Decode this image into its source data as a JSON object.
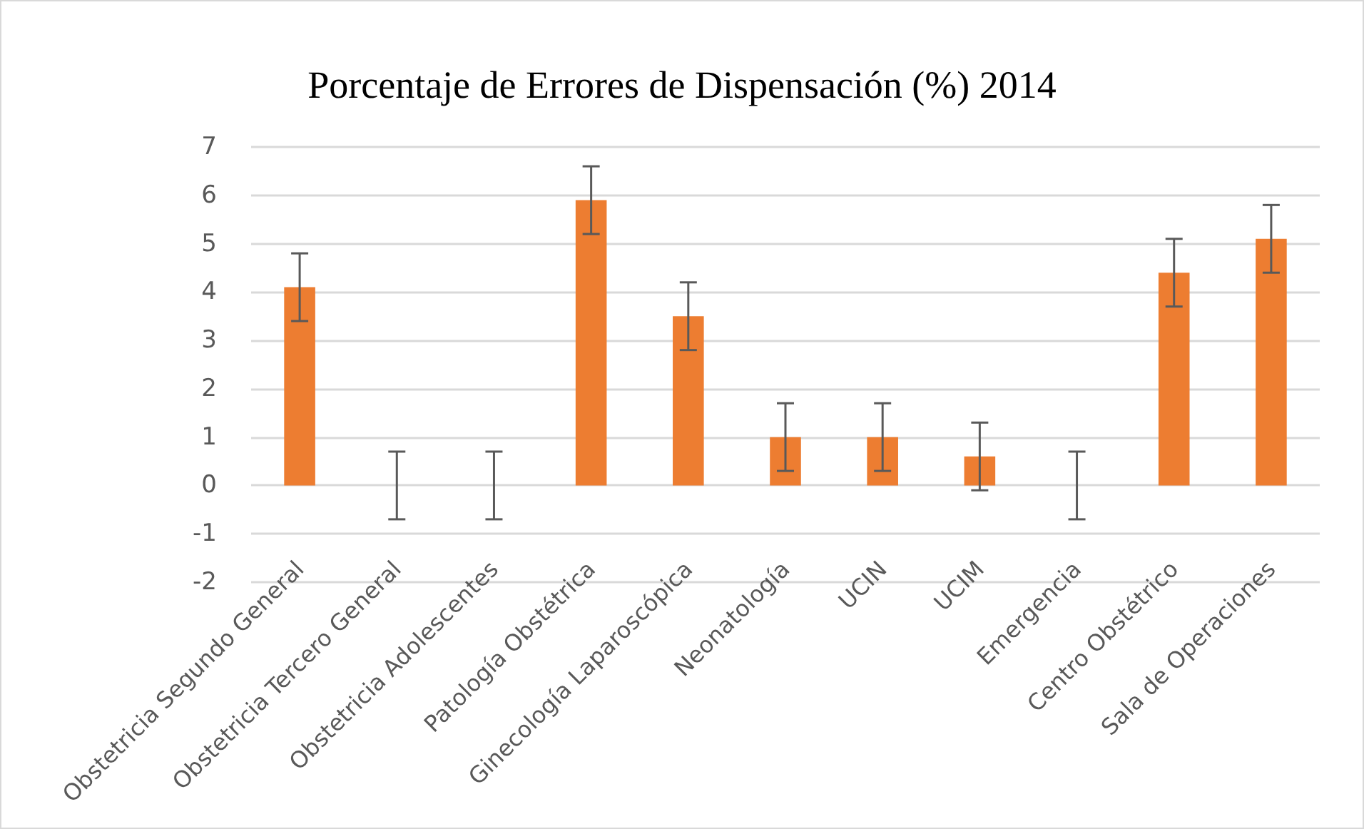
{
  "chart_data": {
    "type": "bar",
    "title": "Porcentaje de Errores de Dispensación (%) 2014",
    "categories": [
      "Obstetricia Segundo General",
      "Obstetricia Tercero General",
      "Obstetricia Adolescentes",
      "Patología Obstétrica",
      "Ginecología Laparoscópica",
      "Neonatología",
      "UCIN",
      "UCIM",
      "Emergencia",
      "Centro Obstétrico",
      "Sala de Operaciones"
    ],
    "values": [
      4.1,
      0,
      0,
      5.9,
      3.5,
      1.0,
      1.0,
      0.6,
      0,
      4.4,
      5.1
    ],
    "errors": [
      0.7,
      0.7,
      0.7,
      0.7,
      0.7,
      0.7,
      0.7,
      0.7,
      0.7,
      0.7,
      0.7
    ],
    "color": "#ed7d31",
    "ylim": [
      -2,
      7
    ],
    "yticks": [
      -2,
      -1,
      0,
      1,
      2,
      3,
      4,
      5,
      6,
      7
    ],
    "grid": "y"
  }
}
